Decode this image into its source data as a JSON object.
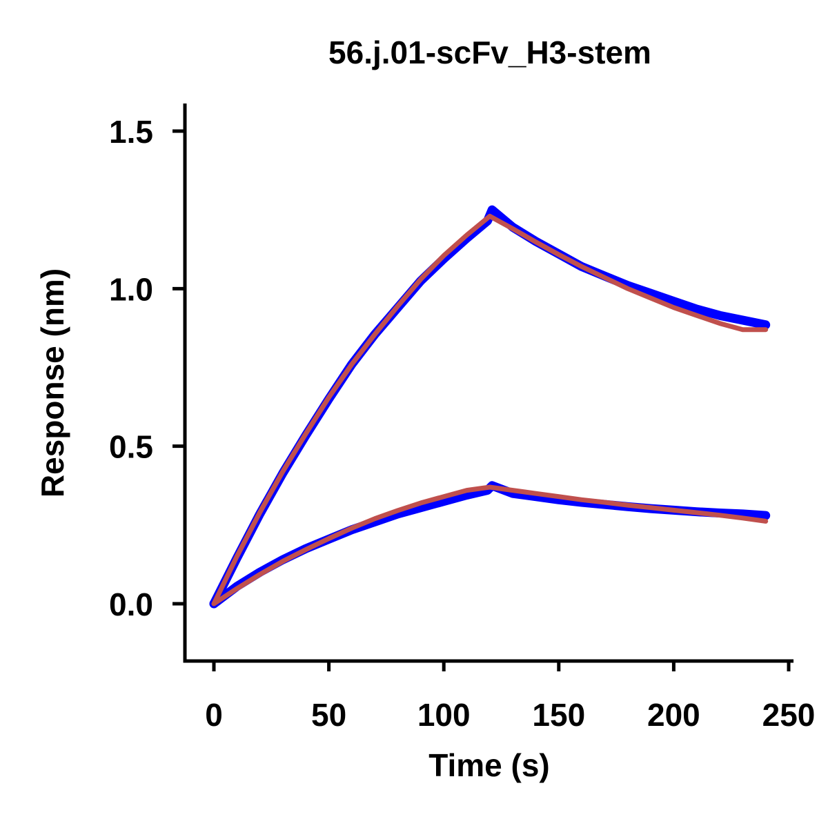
{
  "chart_data": {
    "type": "line",
    "title": "56.j.01-scFv_H3-stem",
    "xlabel": "Time (s)",
    "ylabel": "Response (nm)",
    "xlim": [
      -12,
      252
    ],
    "ylim": [
      -0.18,
      1.58
    ],
    "xticks": [
      0,
      50,
      100,
      150,
      200,
      250
    ],
    "xtick_labels": [
      "0",
      "50",
      "100",
      "150",
      "200",
      "250"
    ],
    "yticks": [
      0.0,
      0.5,
      1.0,
      1.5
    ],
    "ytick_labels": [
      "0.0",
      "0.5",
      "1.0",
      "1.5"
    ],
    "grid": false,
    "colors": {
      "data": "#0000ff",
      "fit": "#c0504d",
      "axis": "#000000"
    },
    "series": [
      {
        "role": "data",
        "x": [
          0,
          10,
          20,
          30,
          40,
          50,
          60,
          70,
          80,
          90,
          100,
          110,
          119,
          121,
          130,
          140,
          150,
          160,
          170,
          180,
          190,
          200,
          210,
          220,
          230,
          240
        ],
        "y": [
          0.0,
          0.145,
          0.285,
          0.415,
          0.535,
          0.65,
          0.76,
          0.855,
          0.94,
          1.025,
          1.095,
          1.16,
          1.215,
          1.25,
          1.195,
          1.15,
          1.11,
          1.07,
          1.04,
          1.01,
          0.985,
          0.96,
          0.935,
          0.915,
          0.9,
          0.885
        ]
      },
      {
        "role": "fit",
        "x": [
          0,
          10,
          20,
          30,
          40,
          50,
          60,
          70,
          80,
          90,
          100,
          110,
          120,
          130,
          140,
          150,
          160,
          170,
          180,
          190,
          200,
          210,
          220,
          230,
          240
        ],
        "y": [
          0.0,
          0.15,
          0.29,
          0.42,
          0.54,
          0.655,
          0.76,
          0.855,
          0.945,
          1.03,
          1.105,
          1.17,
          1.23,
          1.19,
          1.148,
          1.108,
          1.07,
          1.035,
          1.0,
          0.97,
          0.94,
          0.915,
          0.89,
          0.87,
          0.87
        ]
      },
      {
        "role": "data",
        "x": [
          0,
          10,
          20,
          30,
          40,
          50,
          60,
          70,
          80,
          90,
          100,
          110,
          119,
          121,
          130,
          140,
          150,
          160,
          170,
          180,
          190,
          200,
          210,
          220,
          230,
          240
        ],
        "y": [
          0.0,
          0.055,
          0.1,
          0.14,
          0.175,
          0.205,
          0.235,
          0.26,
          0.285,
          0.305,
          0.325,
          0.345,
          0.36,
          0.375,
          0.35,
          0.34,
          0.33,
          0.322,
          0.315,
          0.308,
          0.302,
          0.297,
          0.292,
          0.288,
          0.285,
          0.28
        ]
      },
      {
        "role": "fit",
        "x": [
          0,
          10,
          20,
          30,
          40,
          50,
          60,
          70,
          80,
          90,
          100,
          110,
          120,
          130,
          140,
          150,
          160,
          170,
          180,
          190,
          200,
          210,
          220,
          230,
          240
        ],
        "y": [
          0.0,
          0.048,
          0.093,
          0.135,
          0.172,
          0.207,
          0.24,
          0.27,
          0.296,
          0.32,
          0.34,
          0.36,
          0.37,
          0.36,
          0.35,
          0.34,
          0.33,
          0.322,
          0.313,
          0.305,
          0.297,
          0.289,
          0.281,
          0.272,
          0.262
        ]
      }
    ]
  }
}
